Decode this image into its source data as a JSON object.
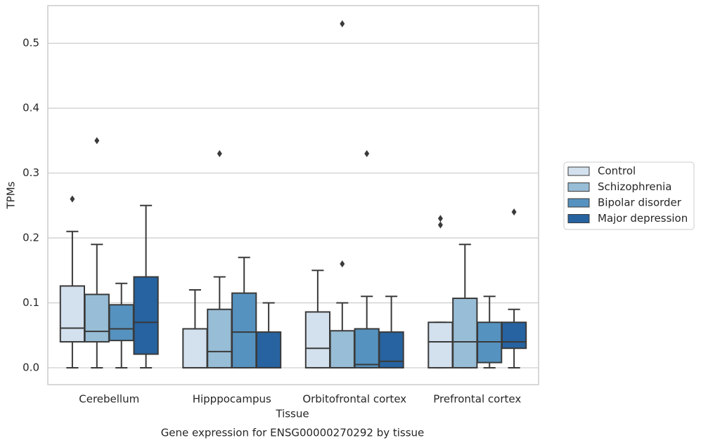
{
  "chart_data": {
    "type": "box",
    "caption": "Gene expression for ENSG00000270292 by tissue",
    "x_label": "Tissue",
    "y_label": "TPMs",
    "categories": [
      "Cerebellum",
      "Hipppocampus",
      "Orbitofrontal cortex",
      "Prefrontal cortex"
    ],
    "ylim": [
      -0.026,
      0.558
    ],
    "yticks": [
      {
        "value": 0,
        "label": "0.0"
      },
      0.1,
      0.2,
      0.3,
      0.4,
      0.5
    ],
    "grid": true,
    "legend": "right",
    "series": [
      {
        "name": "Control",
        "color": "#d3e0ee",
        "boxes": [
          {
            "whislo": 0,
            "q1": 0.04,
            "med": 0.061,
            "q3": 0.126,
            "whishi": 0.21,
            "fliers": [
              0.26
            ]
          },
          {
            "whislo": 0,
            "q1": 0,
            "med": 0,
            "q3": 0.06,
            "whishi": 0.12,
            "fliers": []
          },
          {
            "whislo": 0,
            "q1": 0,
            "med": 0.03,
            "q3": 0.086,
            "whishi": 0.15,
            "fliers": []
          },
          {
            "whislo": 0,
            "q1": 0,
            "med": 0.04,
            "q3": 0.07,
            "whishi": 0.07,
            "fliers": [
              0.23,
              0.22
            ]
          }
        ]
      },
      {
        "name": "Schizophrenia",
        "color": "#98bdd6",
        "boxes": [
          {
            "whislo": 0,
            "q1": 0.04,
            "med": 0.056,
            "q3": 0.113,
            "whishi": 0.19,
            "fliers": [
              0.35
            ]
          },
          {
            "whislo": 0,
            "q1": 0,
            "med": 0.025,
            "q3": 0.09,
            "whishi": 0.14,
            "fliers": [
              0.33
            ]
          },
          {
            "whislo": 0,
            "q1": 0,
            "med": 0,
            "q3": 0.057,
            "whishi": 0.1,
            "fliers": [
              0.16,
              0.53
            ]
          },
          {
            "whislo": 0,
            "q1": 0,
            "med": 0.04,
            "q3": 0.107,
            "whishi": 0.19,
            "fliers": []
          }
        ]
      },
      {
        "name": "Bipolar disorder",
        "color": "#5592bf",
        "boxes": [
          {
            "whislo": 0,
            "q1": 0.042,
            "med": 0.06,
            "q3": 0.097,
            "whishi": 0.13,
            "fliers": []
          },
          {
            "whislo": 0,
            "q1": 0,
            "med": 0.055,
            "q3": 0.115,
            "whishi": 0.17,
            "fliers": []
          },
          {
            "whislo": 0,
            "q1": 0,
            "med": 0.005,
            "q3": 0.06,
            "whishi": 0.11,
            "fliers": [
              0.33
            ]
          },
          {
            "whislo": 0,
            "q1": 0.008,
            "med": 0.04,
            "q3": 0.07,
            "whishi": 0.11,
            "fliers": []
          }
        ]
      },
      {
        "name": "Major depression",
        "color": "#2663a0",
        "boxes": [
          {
            "whislo": 0,
            "q1": 0.021,
            "med": 0.07,
            "q3": 0.14,
            "whishi": 0.25,
            "fliers": []
          },
          {
            "whislo": 0,
            "q1": 0,
            "med": 0,
            "q3": 0.055,
            "whishi": 0.1,
            "fliers": []
          },
          {
            "whislo": 0,
            "q1": 0,
            "med": 0.01,
            "q3": 0.055,
            "whishi": 0.11,
            "fliers": []
          },
          {
            "whislo": 0,
            "q1": 0.03,
            "med": 0.04,
            "q3": 0.07,
            "whishi": 0.09,
            "fliers": [
              0.24
            ]
          }
        ]
      }
    ]
  }
}
